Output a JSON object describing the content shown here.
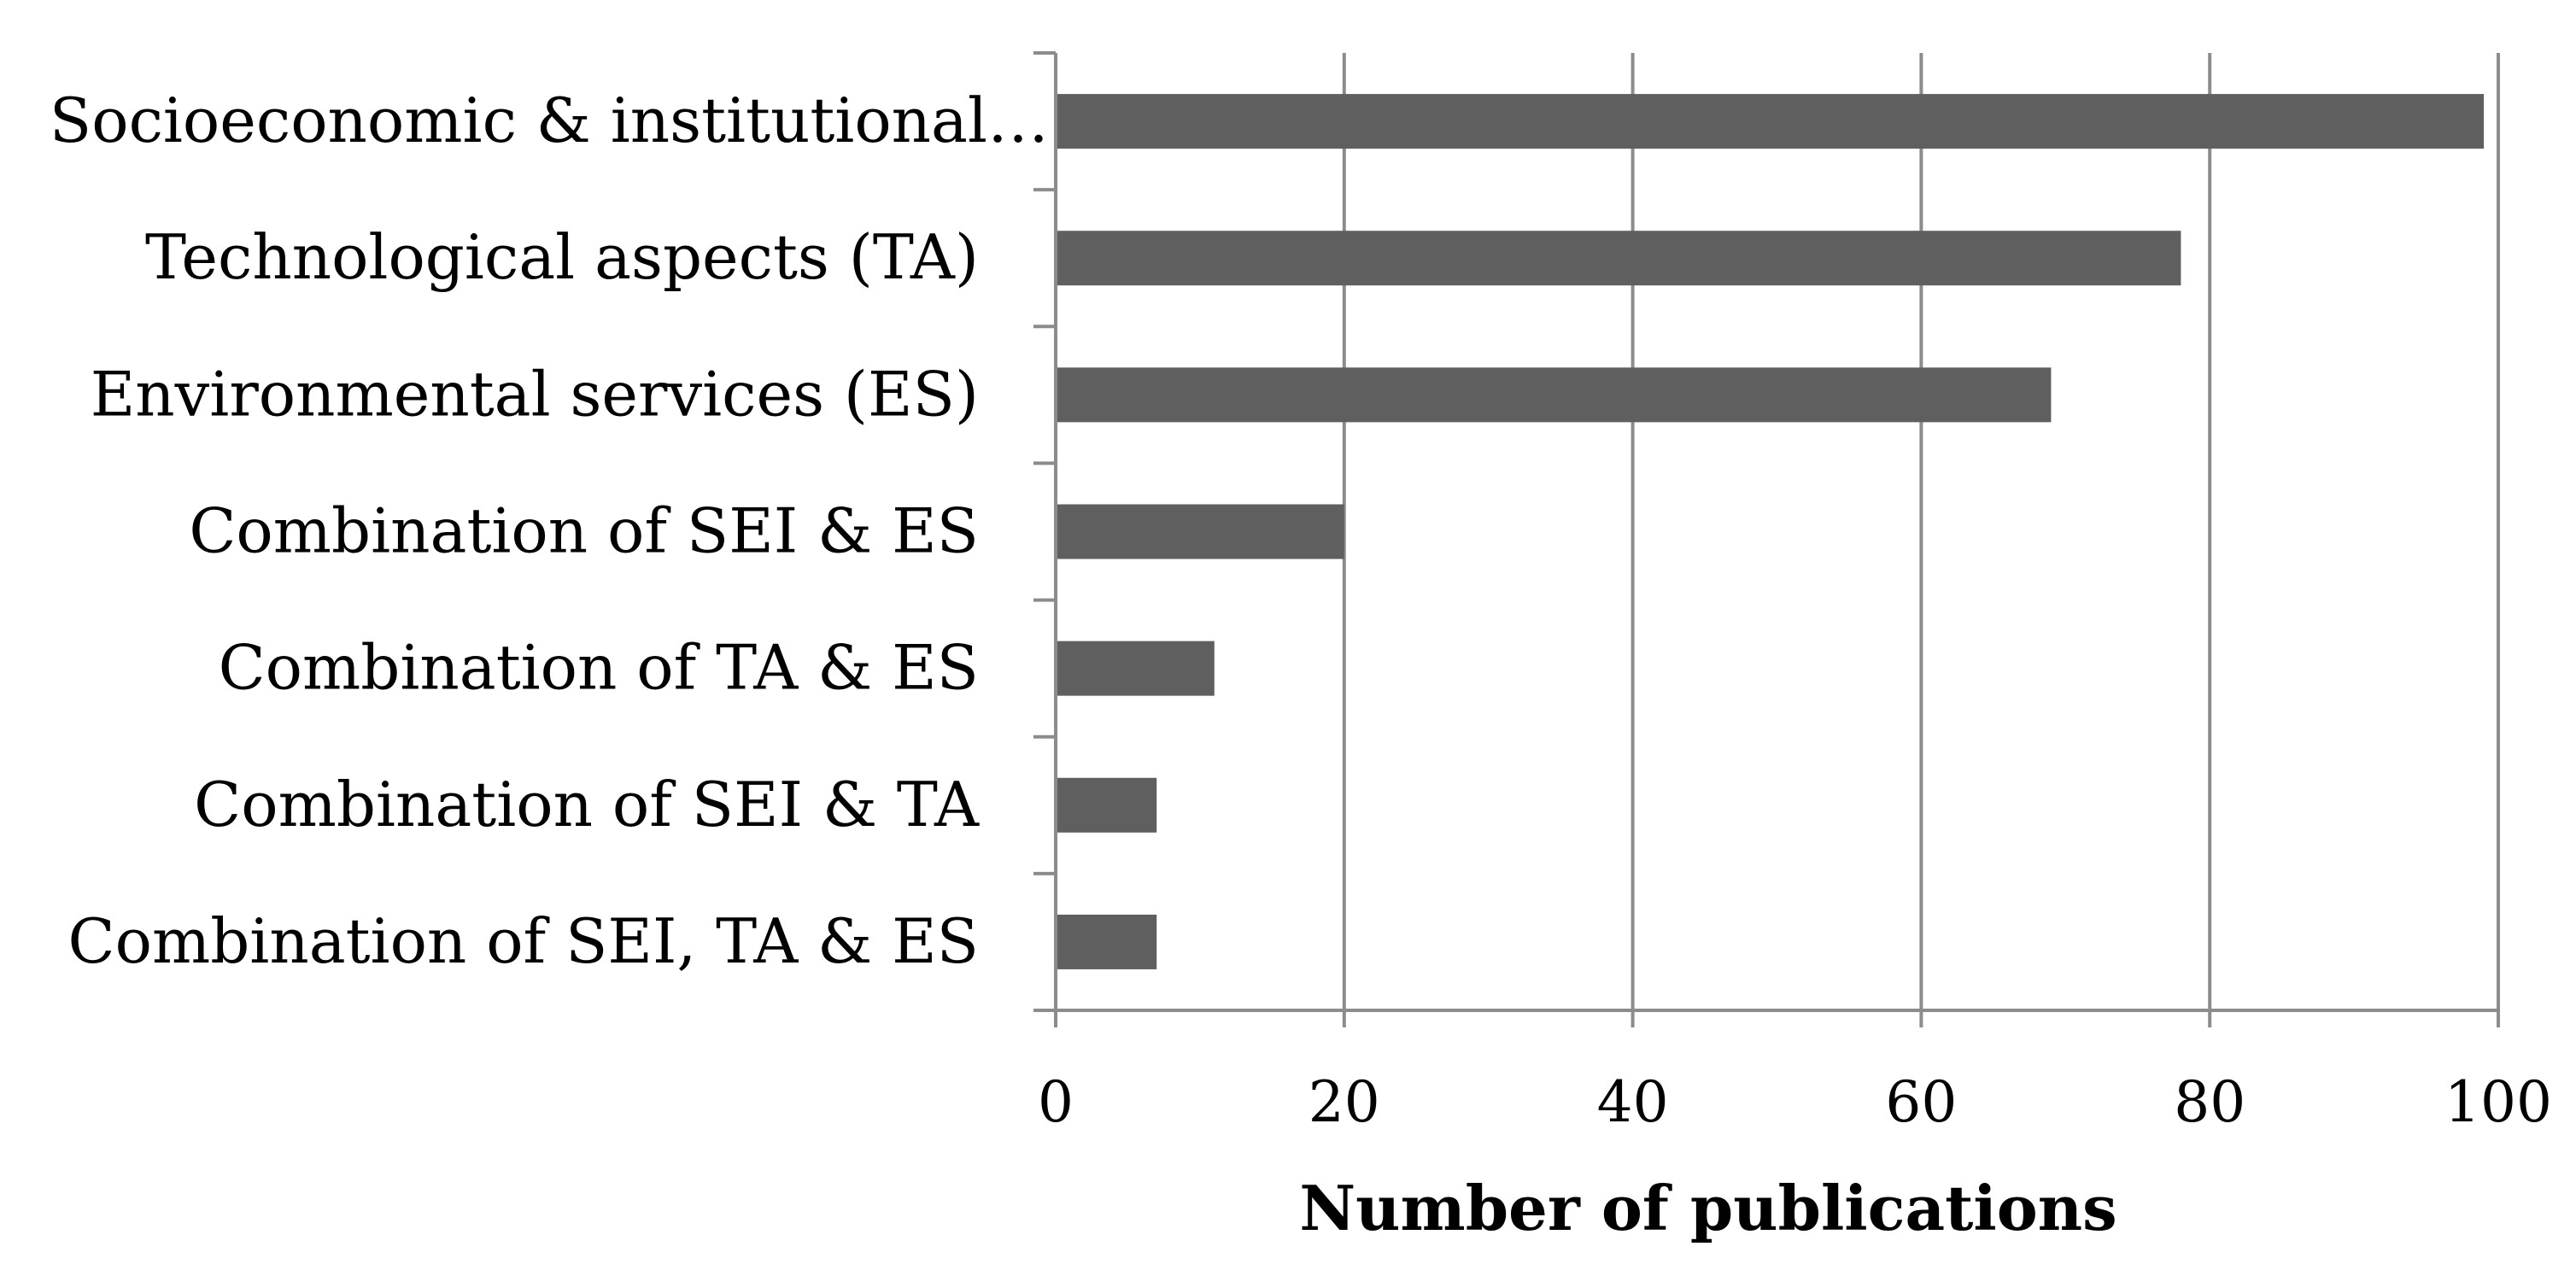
{
  "chart_data": {
    "type": "bar",
    "orientation": "horizontal",
    "categories": [
      "Socioeconomic & institutional…",
      "Technological aspects (TA)",
      "Environmental services (ES)",
      "Combination of SEI & ES",
      "Combination of TA & ES",
      "Combination of SEI & TA",
      "Combination of SEI, TA & ES"
    ],
    "values": [
      99,
      78,
      69,
      20,
      11,
      7,
      7
    ],
    "xlabel": "Number of publications",
    "ylabel": "",
    "xlim": [
      0,
      100
    ],
    "xticks": [
      0,
      20,
      40,
      60,
      80,
      100
    ],
    "xtick_labels": [
      "0",
      "20",
      "40",
      "60",
      "80",
      "100"
    ],
    "grid": "vertical",
    "legend": "none",
    "colors": {
      "bar": "#5f5f5f",
      "gridline": "#8c8c8c",
      "axis": "#8c8c8c",
      "text": "#000000"
    }
  }
}
